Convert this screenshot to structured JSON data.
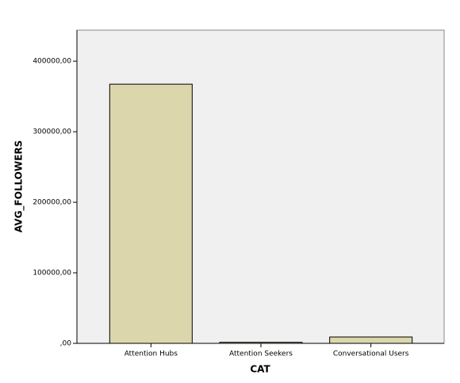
{
  "chart_data": {
    "type": "bar",
    "x_label": "CAT",
    "y_label": "AVG_FOLLOWERS",
    "categories": [
      "Attention Hubs",
      "Attention Seekers",
      "Conversational Users"
    ],
    "values": [
      367400,
      1500,
      9000
    ],
    "color": "#dcd6ac",
    "ylim": [
      0,
      444000
    ],
    "yticks": [
      {
        "value": 0,
        "label": ",00"
      },
      {
        "value": 100000,
        "label": "100000,00"
      },
      {
        "value": 200000,
        "label": "200000,00"
      },
      {
        "value": 300000,
        "label": "300000,00"
      },
      {
        "value": 400000,
        "label": "400000,00"
      }
    ]
  }
}
